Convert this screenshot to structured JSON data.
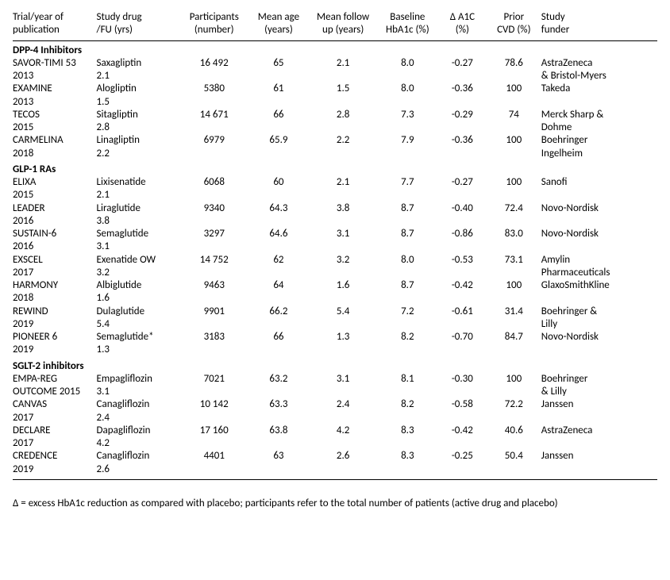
{
  "columns": [
    {
      "line1": "Trial/year of",
      "line2": "publication"
    },
    {
      "line1": "Study drug",
      "line2": "/FU (yrs)"
    },
    {
      "line1": "Participants",
      "line2": "(number)"
    },
    {
      "line1": "Mean age",
      "line2": "(years)"
    },
    {
      "line1": "Mean follow",
      "line2": "up (years)"
    },
    {
      "line1": "Baseline",
      "line2": "HbA1c (%)"
    },
    {
      "line1": "Δ A1C",
      "line2": "(%)"
    },
    {
      "line1": "Prior",
      "line2": "CVD (%)"
    },
    {
      "line1": "Study",
      "line2": "funder"
    }
  ],
  "sections": [
    {
      "title": "DPP-4 Inhibitors",
      "rows": [
        {
          "trial1": "SAVOR-TIMI 53",
          "trial2": "2013",
          "drug": "Saxagliptin",
          "fu": "2.1",
          "part": "16 492",
          "age": "65",
          "mfu": "2.1",
          "hba": "8.0",
          "da": "-0.27",
          "cvd": "78.6",
          "fund1": "AstraZeneca",
          "fund2": "& Bristol-Myers"
        },
        {
          "trial1": "EXAMINE",
          "trial2": "2013",
          "drug": "Alogliptin",
          "fu": "1.5",
          "part": "5380",
          "age": "61",
          "mfu": "1.5",
          "hba": "8.0",
          "da": "-0.36",
          "cvd": "100",
          "fund1": "Takeda",
          "fund2": ""
        },
        {
          "trial1": "TECOS",
          "trial2": "2015",
          "drug": "Sitagliptin",
          "fu": "2.8",
          "part": "14 671",
          "age": "66",
          "mfu": "2.8",
          "hba": "7.3",
          "da": "-0.29",
          "cvd": "74",
          "fund1": "Merck Sharp &",
          "fund2": "Dohme"
        },
        {
          "trial1": "CARMELINA",
          "trial2": "2018",
          "drug": "Linagliptin",
          "fu": "2.2",
          "part": "6979",
          "age": "65.9",
          "mfu": "2.2",
          "hba": "7.9",
          "da": "-0.36",
          "cvd": "100",
          "fund1": "Boehringer",
          "fund2": "Ingelheim"
        }
      ]
    },
    {
      "title": "GLP-1 RAs",
      "rows": [
        {
          "trial1": "ELIXA",
          "trial2": "2015",
          "drug": "Lixisenatide",
          "fu": "2.1",
          "part": "6068",
          "age": "60",
          "mfu": "2.1",
          "hba": "7.7",
          "da": "-0.27",
          "cvd": "100",
          "fund1": "Sanofi",
          "fund2": ""
        },
        {
          "trial1": "LEADER",
          "trial2": "2016",
          "drug": "Liraglutide",
          "fu": "3.8",
          "part": "9340",
          "age": "64.3",
          "mfu": "3.8",
          "hba": "8.7",
          "da": "-0.40",
          "cvd": "72.4",
          "fund1": "Novo-Nordisk",
          "fund2": ""
        },
        {
          "trial1": "SUSTAIN-6",
          "trial2": "2016",
          "drug": "Semaglutide",
          "fu": "3.1",
          "part": "3297",
          "age": "64.6",
          "mfu": "3.1",
          "hba": "8.7",
          "da": "-0.86",
          "cvd": "83.0",
          "fund1": "Novo-Nordisk",
          "fund2": ""
        },
        {
          "trial1": "EXSCEL",
          "trial2": "2017",
          "drug": "Exenatide OW",
          "fu": "3.2",
          "part": "14 752",
          "age": "62",
          "mfu": "3.2",
          "hba": "8.0",
          "da": "-0.53",
          "cvd": "73.1",
          "fund1": "Amylin",
          "fund2": "Pharmaceuticals"
        },
        {
          "trial1": "HARMONY",
          "trial2": "2018",
          "drug": "Albiglutide",
          "fu": "1.6",
          "part": "9463",
          "age": "64",
          "mfu": "1.6",
          "hba": "8.7",
          "da": "-0.42",
          "cvd": "100",
          "fund1": "GlaxoSmithKline",
          "fund2": ""
        },
        {
          "trial1": "REWIND",
          "trial2": "2019",
          "drug": "Dulaglutide",
          "fu": "5.4",
          "part": "9901",
          "age": "66.2",
          "mfu": "5.4",
          "hba": "7.2",
          "da": "-0.61",
          "cvd": "31.4",
          "fund1": "Boehringer &",
          "fund2": "Lilly"
        },
        {
          "trial1": "PIONEER 6",
          "trial2": "2019",
          "drug": "Semaglutide*",
          "fu": "1.3",
          "part": "3183",
          "age": "66",
          "mfu": "1.3",
          "hba": "8.2",
          "da": "-0.70",
          "cvd": "84.7",
          "fund1": "Novo-Nordisk",
          "fund2": ""
        }
      ]
    },
    {
      "title": "SGLT-2 inhibitors",
      "rows": [
        {
          "trial1": "EMPA-REG",
          "trial2": "OUTCOME 2015",
          "drug": "Empagliflozin",
          "fu": "3.1",
          "part": "7021",
          "age": "63.2",
          "mfu": "3.1",
          "hba": "8.1",
          "da": "-0.30",
          "cvd": "100",
          "fund1": "Boehringer",
          "fund2": "& Lilly"
        },
        {
          "trial1": "CANVAS",
          "trial2": "2017",
          "drug": "Canagliflozin",
          "fu": "2.4",
          "part": "10 142",
          "age": "63.3",
          "mfu": "2.4",
          "hba": "8.2",
          "da": "-0.58",
          "cvd": "72.2",
          "fund1": "Janssen",
          "fund2": ""
        },
        {
          "trial1": "DECLARE",
          "trial2": "2017",
          "drug": "Dapagliflozin",
          "fu": "4.2",
          "part": "17 160",
          "age": "63.8",
          "mfu": "4.2",
          "hba": "8.3",
          "da": "-0.42",
          "cvd": "40.6",
          "fund1": "AstraZeneca",
          "fund2": ""
        },
        {
          "trial1": "CREDENCE",
          "trial2": "2019",
          "drug": "Canagliflozin",
          "fu": "2.6",
          "part": "4401",
          "age": "63",
          "mfu": "2.6",
          "hba": "8.3",
          "da": "-0.25",
          "cvd": "50.4",
          "fund1": "Janssen",
          "fund2": ""
        }
      ]
    }
  ],
  "footnote": "Δ = excess HbA1c reduction as compared with placebo; participants refer to the total  number of patients (active drug and placebo)"
}
